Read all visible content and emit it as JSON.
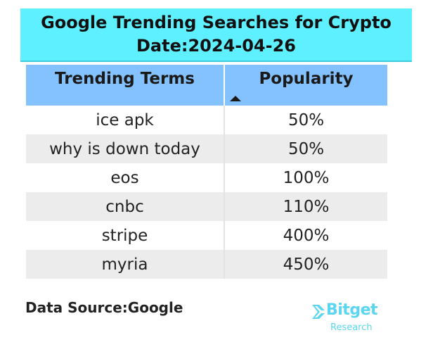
{
  "title": {
    "line1": "Google Trending Searches for Crypto",
    "line2": "Date:2024-04-26"
  },
  "table": {
    "columns": [
      "Trending Terms",
      "Popularity"
    ],
    "sort": "ascending",
    "rows": [
      {
        "term": "ice apk",
        "popularity": "50%"
      },
      {
        "term": "why is down today",
        "popularity": "50%"
      },
      {
        "term": "eos",
        "popularity": "100%"
      },
      {
        "term": "cnbc",
        "popularity": "110%"
      },
      {
        "term": "stripe",
        "popularity": "400%"
      },
      {
        "term": "myria",
        "popularity": "450%"
      }
    ]
  },
  "footer": {
    "source": "Data Source:Google",
    "logo_word": "Bitget",
    "logo_sub": "Research"
  },
  "colors": {
    "title_bg": "#5ff0ff",
    "header_bg": "#84c2ff",
    "alt_row_bg": "#ececec",
    "logo": "#5ad6f0"
  }
}
